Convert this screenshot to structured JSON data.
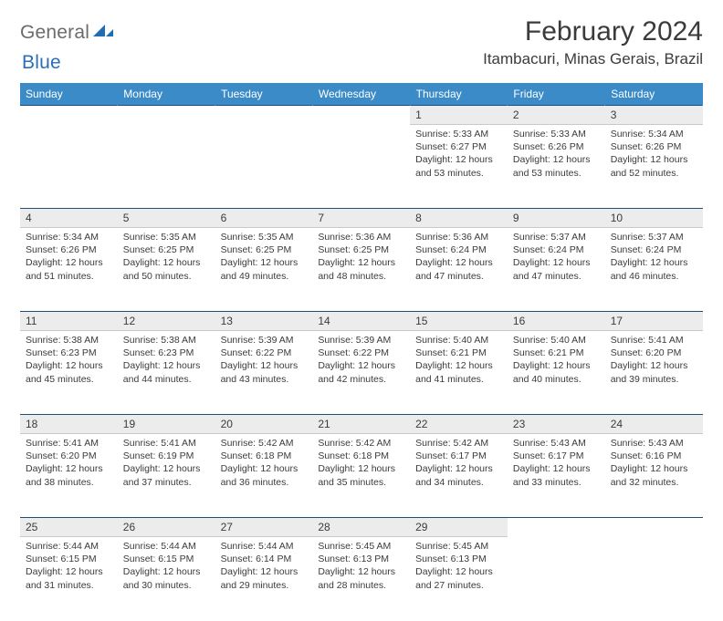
{
  "logo": {
    "text1": "General",
    "text2": "Blue"
  },
  "title": "February 2024",
  "location": "Itambacuri, Minas Gerais, Brazil",
  "colors": {
    "header_bg": "#3b8bc8",
    "header_fg": "#ffffff",
    "daynum_bg": "#ececec",
    "rule": "#1f4e79",
    "logo_gray": "#6b6b6b",
    "logo_blue": "#2a6fb5"
  },
  "weekdays": [
    "Sunday",
    "Monday",
    "Tuesday",
    "Wednesday",
    "Thursday",
    "Friday",
    "Saturday"
  ],
  "weeks": [
    [
      null,
      null,
      null,
      null,
      {
        "n": "1",
        "sr": "5:33 AM",
        "ss": "6:27 PM",
        "dl": "12 hours and 53 minutes."
      },
      {
        "n": "2",
        "sr": "5:33 AM",
        "ss": "6:26 PM",
        "dl": "12 hours and 53 minutes."
      },
      {
        "n": "3",
        "sr": "5:34 AM",
        "ss": "6:26 PM",
        "dl": "12 hours and 52 minutes."
      }
    ],
    [
      {
        "n": "4",
        "sr": "5:34 AM",
        "ss": "6:26 PM",
        "dl": "12 hours and 51 minutes."
      },
      {
        "n": "5",
        "sr": "5:35 AM",
        "ss": "6:25 PM",
        "dl": "12 hours and 50 minutes."
      },
      {
        "n": "6",
        "sr": "5:35 AM",
        "ss": "6:25 PM",
        "dl": "12 hours and 49 minutes."
      },
      {
        "n": "7",
        "sr": "5:36 AM",
        "ss": "6:25 PM",
        "dl": "12 hours and 48 minutes."
      },
      {
        "n": "8",
        "sr": "5:36 AM",
        "ss": "6:24 PM",
        "dl": "12 hours and 47 minutes."
      },
      {
        "n": "9",
        "sr": "5:37 AM",
        "ss": "6:24 PM",
        "dl": "12 hours and 47 minutes."
      },
      {
        "n": "10",
        "sr": "5:37 AM",
        "ss": "6:24 PM",
        "dl": "12 hours and 46 minutes."
      }
    ],
    [
      {
        "n": "11",
        "sr": "5:38 AM",
        "ss": "6:23 PM",
        "dl": "12 hours and 45 minutes."
      },
      {
        "n": "12",
        "sr": "5:38 AM",
        "ss": "6:23 PM",
        "dl": "12 hours and 44 minutes."
      },
      {
        "n": "13",
        "sr": "5:39 AM",
        "ss": "6:22 PM",
        "dl": "12 hours and 43 minutes."
      },
      {
        "n": "14",
        "sr": "5:39 AM",
        "ss": "6:22 PM",
        "dl": "12 hours and 42 minutes."
      },
      {
        "n": "15",
        "sr": "5:40 AM",
        "ss": "6:21 PM",
        "dl": "12 hours and 41 minutes."
      },
      {
        "n": "16",
        "sr": "5:40 AM",
        "ss": "6:21 PM",
        "dl": "12 hours and 40 minutes."
      },
      {
        "n": "17",
        "sr": "5:41 AM",
        "ss": "6:20 PM",
        "dl": "12 hours and 39 minutes."
      }
    ],
    [
      {
        "n": "18",
        "sr": "5:41 AM",
        "ss": "6:20 PM",
        "dl": "12 hours and 38 minutes."
      },
      {
        "n": "19",
        "sr": "5:41 AM",
        "ss": "6:19 PM",
        "dl": "12 hours and 37 minutes."
      },
      {
        "n": "20",
        "sr": "5:42 AM",
        "ss": "6:18 PM",
        "dl": "12 hours and 36 minutes."
      },
      {
        "n": "21",
        "sr": "5:42 AM",
        "ss": "6:18 PM",
        "dl": "12 hours and 35 minutes."
      },
      {
        "n": "22",
        "sr": "5:42 AM",
        "ss": "6:17 PM",
        "dl": "12 hours and 34 minutes."
      },
      {
        "n": "23",
        "sr": "5:43 AM",
        "ss": "6:17 PM",
        "dl": "12 hours and 33 minutes."
      },
      {
        "n": "24",
        "sr": "5:43 AM",
        "ss": "6:16 PM",
        "dl": "12 hours and 32 minutes."
      }
    ],
    [
      {
        "n": "25",
        "sr": "5:44 AM",
        "ss": "6:15 PM",
        "dl": "12 hours and 31 minutes."
      },
      {
        "n": "26",
        "sr": "5:44 AM",
        "ss": "6:15 PM",
        "dl": "12 hours and 30 minutes."
      },
      {
        "n": "27",
        "sr": "5:44 AM",
        "ss": "6:14 PM",
        "dl": "12 hours and 29 minutes."
      },
      {
        "n": "28",
        "sr": "5:45 AM",
        "ss": "6:13 PM",
        "dl": "12 hours and 28 minutes."
      },
      {
        "n": "29",
        "sr": "5:45 AM",
        "ss": "6:13 PM",
        "dl": "12 hours and 27 minutes."
      },
      null,
      null
    ]
  ],
  "labels": {
    "sunrise": "Sunrise:",
    "sunset": "Sunset:",
    "daylight": "Daylight:"
  }
}
